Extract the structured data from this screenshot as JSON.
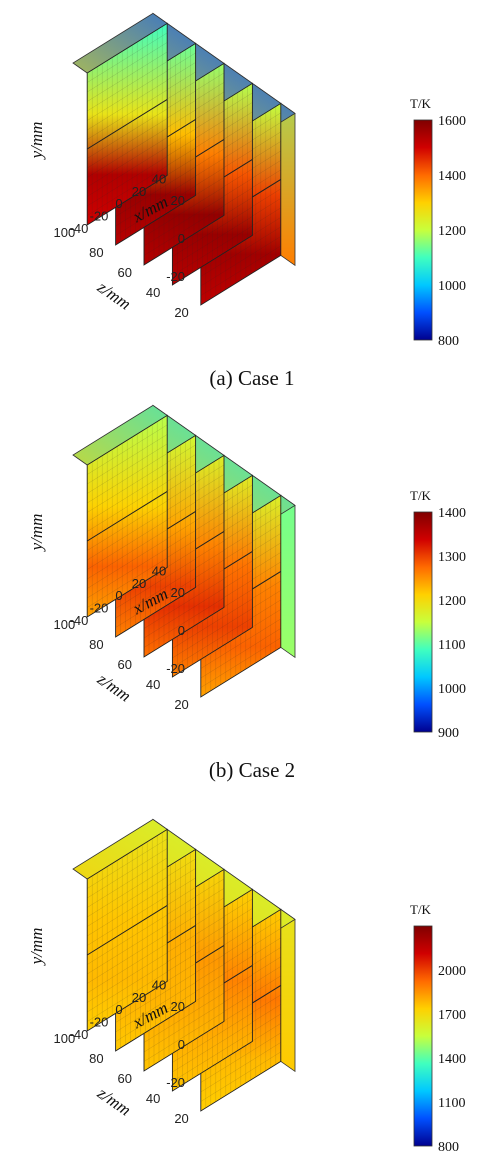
{
  "colors": {
    "colormap": [
      "#00008f",
      "#0050ff",
      "#00c8ff",
      "#40ffbf",
      "#c8ff3c",
      "#ffd000",
      "#ff6a00",
      "#d00000",
      "#800000"
    ]
  },
  "chart_data": [
    {
      "type": "heatmap",
      "title": "",
      "caption": "(a) Case 1",
      "xlabel": "x/mm",
      "ylabel": "y/mm",
      "zlabel": "z/mm",
      "x_ticks": [
        "-40",
        "-20",
        "0",
        "20",
        "40"
      ],
      "y_ticks": [
        "20",
        "0",
        "-20"
      ],
      "z_ticks": [
        "20",
        "40",
        "60",
        "80",
        "100"
      ],
      "colorbar": {
        "title": "T/K",
        "range": [
          800,
          1600
        ],
        "ticks": [
          "1600",
          "1400",
          "1200",
          "1000",
          "800"
        ]
      },
      "temperature_field": {
        "front_bottom_slices_K": [
          1560,
          1570,
          1575,
          1570,
          1540
        ],
        "front_top_slices_K": [
          1440,
          1420,
          1380,
          1320,
          1260
        ],
        "rear_top_K": 900,
        "right_face_top_K": 1150,
        "right_face_bottom_K": 1380
      }
    },
    {
      "type": "heatmap",
      "title": "",
      "caption": "(b) Case 2",
      "xlabel": "x/mm",
      "ylabel": "y/mm",
      "zlabel": "z/mm",
      "x_ticks": [
        "-40",
        "-20",
        "0",
        "20",
        "40"
      ],
      "y_ticks": [
        "20",
        "0",
        "-20"
      ],
      "z_ticks": [
        "20",
        "40",
        "60",
        "80",
        "100"
      ],
      "colorbar": {
        "title": "T/K",
        "range": [
          900,
          1400
        ],
        "ticks": [
          "1400",
          "1300",
          "1200",
          "1100",
          "1000",
          "900"
        ]
      },
      "temperature_field": {
        "front_bottom_slices_K": [
          1280,
          1300,
          1310,
          1300,
          1280
        ],
        "front_top_slices_K": [
          1260,
          1270,
          1260,
          1240,
          1210
        ],
        "rear_top_K": 1060,
        "right_face_top_K": 1100,
        "right_face_bottom_K": 1130
      }
    },
    {
      "type": "heatmap",
      "title": "",
      "caption": "",
      "xlabel": "x/mm",
      "ylabel": "y/mm",
      "zlabel": "z/mm",
      "x_ticks": [
        "-40",
        "-20",
        "0",
        "20",
        "40"
      ],
      "y_ticks": [
        "20",
        "0",
        "-20"
      ],
      "z_ticks": [
        "20",
        "40",
        "60",
        "80",
        "100"
      ],
      "colorbar": {
        "title": "T/K",
        "range": [
          800,
          2300
        ],
        "ticks": [
          "2000",
          "1700",
          "1400",
          "1100",
          "800"
        ]
      },
      "temperature_field": {
        "front_bottom_slices_K": [
          1780,
          1800,
          1800,
          1790,
          1780
        ],
        "front_top_slices_K": [
          1900,
          1880,
          1840,
          1800,
          1760
        ],
        "rear_top_K": 1550,
        "right_face_top_K": 1600,
        "right_face_bottom_K": 1750
      }
    }
  ]
}
